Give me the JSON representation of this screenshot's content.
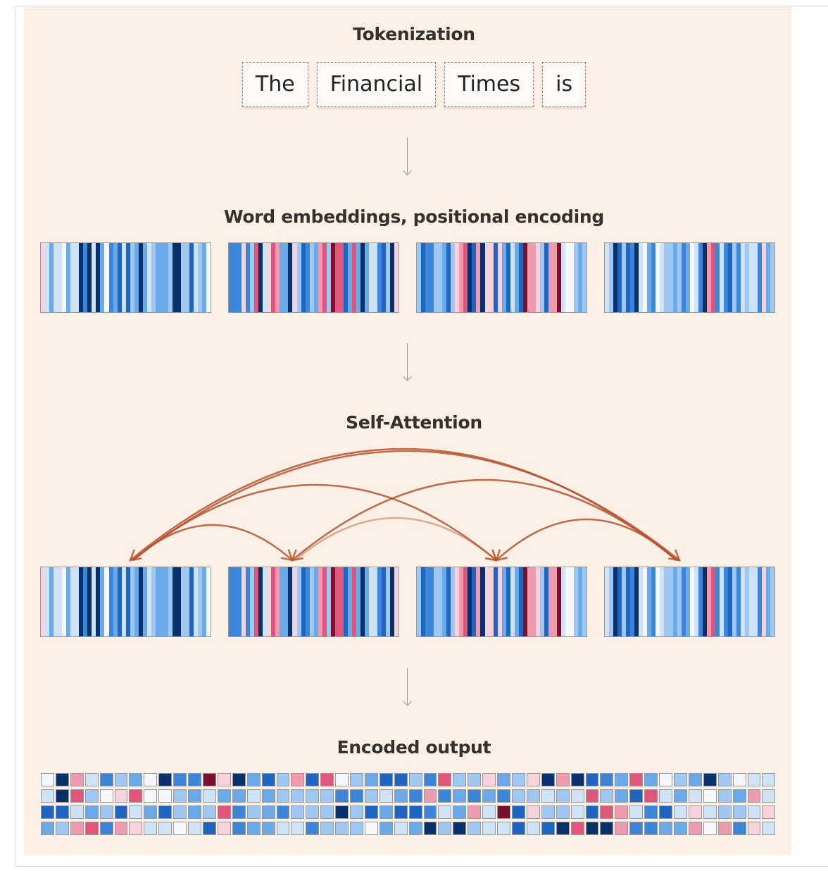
{
  "sections": {
    "tokenization": "Tokenization",
    "embeddings": "Word embeddings, positional encoding",
    "attention": "Self-Attention",
    "output": "Encoded output"
  },
  "tokens": [
    "The",
    "Financial",
    "Times",
    "is"
  ],
  "colors": {
    "background": "#fdf0e6",
    "arc": "#b5522e",
    "palette": [
      "#08306b",
      "#1f66c2",
      "#3b86d9",
      "#6aaae8",
      "#9ec8f2",
      "#cfe3f7",
      "#f4f7fb",
      "#f6d3dc",
      "#ee9bb0",
      "#e0567a",
      "#7a0f2e"
    ]
  },
  "attention_links": [
    {
      "from": 3,
      "to": 0
    },
    {
      "from": 0,
      "to": 3
    },
    {
      "from": 0,
      "to": 2
    },
    {
      "from": 3,
      "to": 1
    },
    {
      "from": 0,
      "to": 1
    },
    {
      "from": 1,
      "to": 2
    },
    {
      "from": 3,
      "to": 2
    }
  ]
}
